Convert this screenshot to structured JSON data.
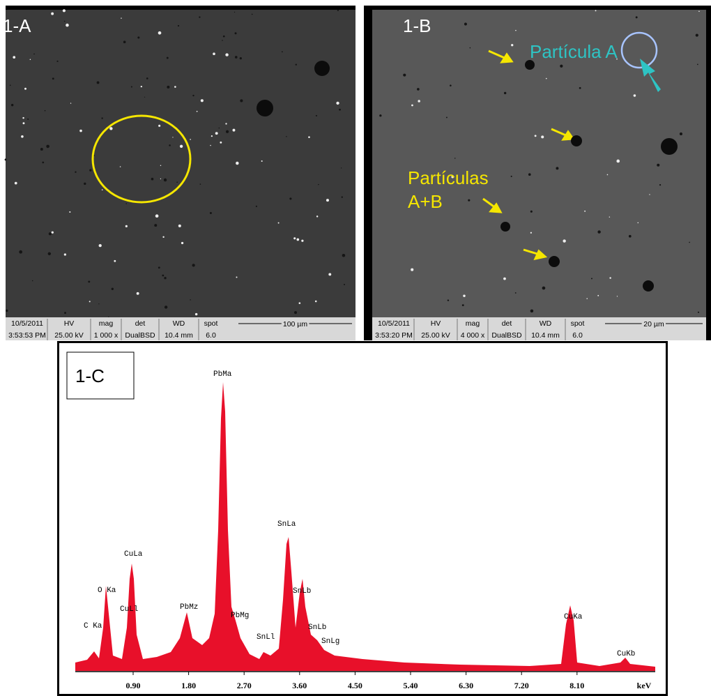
{
  "panels": [
    {
      "label": "1-A",
      "info": {
        "headers": [
          "10/5/2011",
          "HV",
          "mag",
          "det",
          "WD",
          "spot"
        ],
        "values": [
          "3:53:53 PM",
          "25.00 kV",
          "1 000 x",
          "DualBSD",
          "10.4 mm",
          "6.0"
        ]
      },
      "scale": "100 µm"
    },
    {
      "label": "1-B",
      "info": {
        "headers": [
          "10/5/2011",
          "HV",
          "mag",
          "det",
          "WD",
          "spot"
        ],
        "values": [
          "3:53:20 PM",
          "25.00 kV",
          "4 000 x",
          "DualBSD",
          "10.4 mm",
          "6.0"
        ]
      },
      "scale": "20 µm",
      "annotations": [
        "Partícula A",
        "Partículas",
        "A+B"
      ]
    }
  ],
  "spectrum": {
    "label": "1-C",
    "peaks": [
      "C Ka",
      "O Ka",
      "CuLa",
      "CuLl",
      "PbMz",
      "PbMa",
      "PbMg",
      "SnLl",
      "SnLa",
      "SnLb",
      "SnLb",
      "SnLg",
      "CuKa",
      "CuKb"
    ],
    "x_tick_labels": [
      "0.90",
      "1.80",
      "2.70",
      "3.60",
      "4.50",
      "5.40",
      "6.30",
      "7.20",
      "8.10"
    ],
    "unit": "keV"
  }
}
